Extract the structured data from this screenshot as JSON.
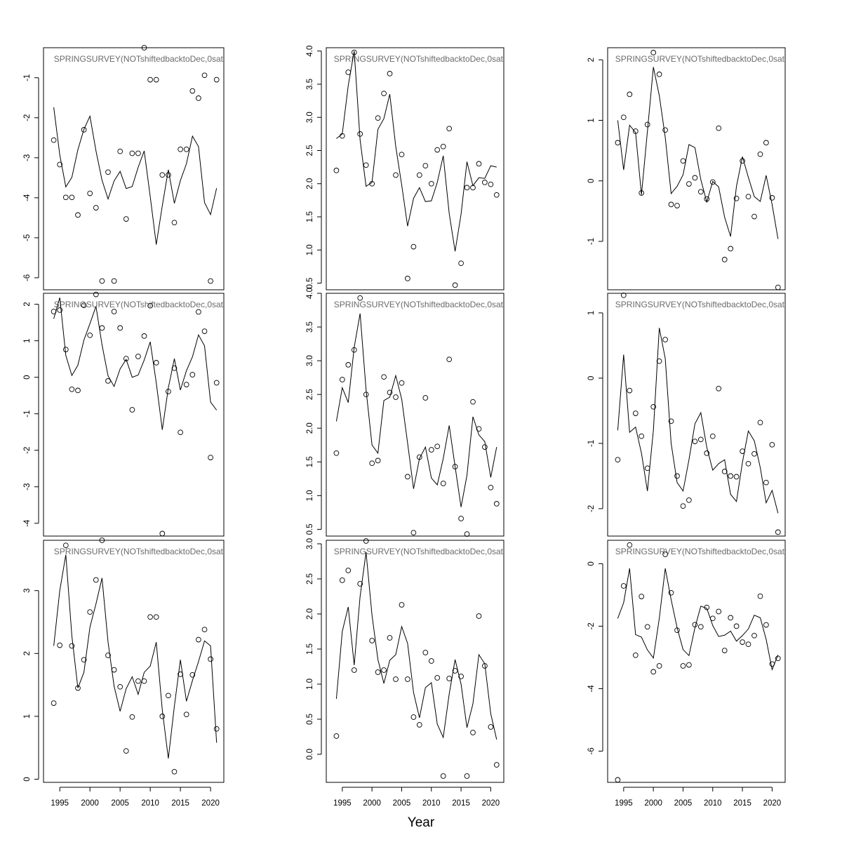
{
  "figure": {
    "xlabel": "Year",
    "panel_title": "SPRINGSURVEY(NOTshiftedbacktoDec,0sat",
    "line_color": "#000000",
    "point_color": "#000000",
    "title_color": "#6b6b6b"
  },
  "chart_data": [
    {
      "type": "line",
      "title": "SPRINGSURVEY(NOTshiftedbacktoDec,0sat",
      "x": [
        1994,
        1995,
        1996,
        1997,
        1998,
        1999,
        2000,
        2001,
        2002,
        2003,
        2004,
        2005,
        2006,
        2007,
        2008,
        2009,
        2010,
        2011,
        2012,
        2013,
        2014,
        2015,
        2016,
        2017,
        2018,
        2019,
        2020,
        2021
      ],
      "series": [
        {
          "role": "observed",
          "values": [
            -2.56,
            -3.17,
            -3.99,
            -3.99,
            -4.43,
            -2.3,
            -3.89,
            -4.25,
            -6.08,
            -3.36,
            -6.08,
            -2.84,
            -4.53,
            -2.89,
            -2.89,
            -0.25,
            -1.05,
            -1.05,
            -3.43,
            -3.43,
            -4.62,
            -2.79,
            -2.79,
            -1.33,
            -1.51,
            -0.94,
            -6.08,
            -1.05
          ]
        },
        {
          "role": "fitted",
          "values": [
            -1.74,
            -2.93,
            -3.73,
            -3.49,
            -2.8,
            -2.29,
            -1.96,
            -2.83,
            -3.56,
            -4.03,
            -3.58,
            -3.34,
            -3.77,
            -3.72,
            -3.24,
            -2.83,
            -3.97,
            -5.17,
            -4.2,
            -3.3,
            -4.14,
            -3.57,
            -3.15,
            -2.46,
            -2.72,
            -4.12,
            -4.42,
            -3.76
          ]
        }
      ],
      "ylim": [
        -6.3,
        -0.25
      ],
      "yticks": [
        -6,
        -5,
        -4,
        -3,
        -2,
        -1
      ]
    },
    {
      "type": "line",
      "title": "SPRINGSURVEY(NOTshiftedbacktoDec,0sat",
      "x": [
        1994,
        1995,
        1996,
        1997,
        1998,
        1999,
        2000,
        2001,
        2002,
        2003,
        2004,
        2005,
        2006,
        2007,
        2008,
        2009,
        2010,
        2011,
        2012,
        2013,
        2014,
        2015,
        2016,
        2017,
        2018,
        2019,
        2020,
        2021
      ],
      "series": [
        {
          "role": "observed",
          "values": [
            2.2,
            2.72,
            3.68,
            3.98,
            2.75,
            2.28,
            2.0,
            2.99,
            3.36,
            3.66,
            2.13,
            2.44,
            0.57,
            1.05,
            2.13,
            2.27,
            2.0,
            2.51,
            2.56,
            2.83,
            0.47,
            0.8,
            1.94,
            1.94,
            2.3,
            2.02,
            1.99,
            1.83
          ]
        },
        {
          "role": "fitted",
          "values": [
            2.68,
            2.75,
            3.48,
            4.0,
            2.66,
            1.96,
            2.02,
            2.82,
            2.98,
            3.35,
            2.56,
            1.98,
            1.36,
            1.78,
            1.94,
            1.73,
            1.74,
            2.02,
            2.42,
            1.55,
            0.98,
            1.54,
            2.33,
            1.97,
            2.09,
            2.08,
            2.27,
            2.25
          ]
        }
      ],
      "ylim": [
        0.4,
        4.05
      ],
      "yticks": [
        0.5,
        1.0,
        1.5,
        2.0,
        2.5,
        3.0,
        3.5,
        4.0
      ]
    },
    {
      "type": "line",
      "title": "SPRINGSURVEY(NOTshiftedbacktoDec,0sat",
      "x": [
        1994,
        1995,
        1996,
        1997,
        1998,
        1999,
        2000,
        2001,
        2002,
        2003,
        2004,
        2005,
        2006,
        2007,
        2008,
        2009,
        2010,
        2011,
        2012,
        2013,
        2014,
        2015,
        2016,
        2017,
        2018,
        2019,
        2020,
        2021
      ],
      "series": [
        {
          "role": "observed",
          "values": [
            0.63,
            1.05,
            1.43,
            0.82,
            -0.2,
            0.93,
            2.12,
            1.76,
            0.84,
            -0.39,
            -0.41,
            0.33,
            -0.05,
            0.05,
            -0.18,
            -0.3,
            -0.02,
            0.87,
            -1.3,
            -1.12,
            -0.29,
            0.33,
            -0.26,
            -0.59,
            0.44,
            0.63,
            -0.28,
            -1.76
          ]
        },
        {
          "role": "fitted",
          "values": [
            1.0,
            0.18,
            0.92,
            0.8,
            -0.23,
            0.82,
            1.88,
            1.41,
            0.72,
            -0.21,
            -0.09,
            0.1,
            0.6,
            0.55,
            0.02,
            -0.35,
            -0.01,
            -0.1,
            -0.6,
            -0.92,
            -0.09,
            0.4,
            0.06,
            -0.26,
            -0.34,
            0.09,
            -0.39,
            -0.96
          ]
        }
      ],
      "ylim": [
        -1.8,
        2.2
      ],
      "yticks": [
        -1,
        0,
        1,
        2
      ]
    },
    {
      "type": "line",
      "title": "SPRINGSURVEY(NOTshiftedbacktoDec,0sat",
      "x": [
        1994,
        1995,
        1996,
        1997,
        1998,
        1999,
        2000,
        2001,
        2002,
        2003,
        2004,
        2005,
        2006,
        2007,
        2008,
        2009,
        2010,
        2011,
        2012,
        2013,
        2014,
        2015,
        2016,
        2017,
        2018,
        2019,
        2020,
        2021
      ],
      "series": [
        {
          "role": "observed",
          "values": [
            1.8,
            1.84,
            0.76,
            -0.33,
            -0.36,
            1.97,
            1.15,
            2.27,
            1.35,
            -0.1,
            1.8,
            1.35,
            0.51,
            -0.89,
            0.57,
            1.13,
            1.96,
            0.4,
            -4.28,
            -0.39,
            0.25,
            -1.51,
            -0.2,
            0.07,
            1.79,
            1.26,
            -2.2,
            -0.15
          ]
        },
        {
          "role": "fitted",
          "values": [
            1.6,
            2.18,
            0.6,
            0.05,
            0.33,
            1.02,
            1.47,
            1.94,
            0.89,
            0.04,
            -0.25,
            0.23,
            0.49,
            0.0,
            0.06,
            0.47,
            0.97,
            -0.15,
            -1.44,
            -0.29,
            0.51,
            -0.35,
            0.18,
            0.56,
            1.16,
            0.86,
            -0.68,
            -0.9
          ]
        }
      ],
      "ylim": [
        -4.35,
        2.3
      ],
      "yticks": [
        -4,
        -3,
        -2,
        -1,
        0,
        1,
        2
      ]
    },
    {
      "type": "line",
      "title": "SPRINGSURVEY(NOTshiftedbacktoDec,0sat",
      "x": [
        1994,
        1995,
        1996,
        1997,
        1998,
        1999,
        2000,
        2001,
        2002,
        2003,
        2004,
        2005,
        2006,
        2007,
        2008,
        2009,
        2010,
        2011,
        2012,
        2013,
        2014,
        2015,
        2016,
        2017,
        2018,
        2019,
        2020,
        2021
      ],
      "series": [
        {
          "role": "observed",
          "values": [
            1.63,
            2.72,
            2.94,
            3.16,
            3.93,
            2.5,
            1.48,
            1.52,
            2.76,
            2.53,
            2.46,
            2.67,
            1.28,
            0.45,
            1.57,
            2.45,
            1.68,
            1.73,
            1.18,
            3.02,
            1.43,
            0.66,
            0.43,
            2.39,
            1.99,
            1.72,
            1.12,
            0.88
          ]
        },
        {
          "role": "fitted",
          "values": [
            2.1,
            2.6,
            2.38,
            3.2,
            3.7,
            2.57,
            1.75,
            1.63,
            2.41,
            2.46,
            2.78,
            2.43,
            1.78,
            1.1,
            1.55,
            1.72,
            1.26,
            1.16,
            1.55,
            2.04,
            1.43,
            0.83,
            1.3,
            2.17,
            1.9,
            1.8,
            1.27,
            1.72
          ]
        }
      ],
      "ylim": [
        0.4,
        4.0
      ],
      "yticks": [
        0.5,
        1.0,
        1.5,
        2.0,
        2.5,
        3.0,
        3.5,
        4.0
      ]
    },
    {
      "type": "line",
      "title": "SPRINGSURVEY(NOTshiftedbacktoDec,0sat",
      "x": [
        1994,
        1995,
        1996,
        1997,
        1998,
        1999,
        2000,
        2001,
        2002,
        2003,
        2004,
        2005,
        2006,
        2007,
        2008,
        2009,
        2010,
        2011,
        2012,
        2013,
        2014,
        2015,
        2016,
        2017,
        2018,
        2019,
        2020,
        2021
      ],
      "series": [
        {
          "role": "observed",
          "values": [
            -1.25,
            1.27,
            -0.19,
            -0.54,
            -0.89,
            -1.38,
            -0.44,
            0.26,
            0.59,
            -0.66,
            -1.5,
            -1.96,
            -1.87,
            -0.97,
            -0.94,
            -1.15,
            -0.89,
            -0.16,
            -1.43,
            -1.5,
            -1.51,
            -1.12,
            -1.31,
            -1.16,
            -0.68,
            -1.6,
            -1.02,
            -2.36
          ]
        },
        {
          "role": "fitted",
          "values": [
            -0.8,
            0.36,
            -0.83,
            -0.75,
            -1.15,
            -1.73,
            -0.8,
            0.77,
            0.3,
            -1.0,
            -1.6,
            -1.73,
            -1.25,
            -0.7,
            -0.53,
            -1.06,
            -1.41,
            -1.31,
            -1.25,
            -1.78,
            -1.89,
            -1.29,
            -0.81,
            -0.96,
            -1.37,
            -1.91,
            -1.72,
            -2.07
          ]
        }
      ],
      "ylim": [
        -2.42,
        1.3
      ],
      "yticks": [
        -2,
        -1,
        0,
        1
      ]
    },
    {
      "type": "line",
      "title": "SPRINGSURVEY(NOTshiftedbacktoDec,0sat",
      "x": [
        1994,
        1995,
        1996,
        1997,
        1998,
        1999,
        2000,
        2001,
        2002,
        2003,
        2004,
        2005,
        2006,
        2007,
        2008,
        2009,
        2010,
        2011,
        2012,
        2013,
        2014,
        2015,
        2016,
        2017,
        2018,
        2019,
        2020,
        2021
      ],
      "series": [
        {
          "role": "observed",
          "values": [
            1.21,
            2.13,
            3.72,
            2.12,
            1.45,
            1.9,
            2.66,
            3.17,
            3.8,
            1.97,
            1.74,
            1.47,
            0.45,
            0.99,
            1.56,
            1.56,
            2.58,
            2.58,
            1.0,
            1.33,
            0.12,
            1.67,
            1.03,
            1.66,
            2.22,
            2.38,
            1.91,
            0.8
          ]
        },
        {
          "role": "fitted",
          "values": [
            2.12,
            3.0,
            3.57,
            2.28,
            1.45,
            1.7,
            2.42,
            2.79,
            3.2,
            2.18,
            1.48,
            1.08,
            1.44,
            1.63,
            1.35,
            1.7,
            1.8,
            2.18,
            1.1,
            0.33,
            1.16,
            1.9,
            1.24,
            1.57,
            1.87,
            2.2,
            2.12,
            0.58
          ]
        }
      ],
      "ylim": [
        -0.05,
        3.8
      ],
      "yticks": [
        0,
        1,
        2,
        3
      ]
    },
    {
      "type": "line",
      "title": "SPRINGSURVEY(NOTshiftedbacktoDec,0sat",
      "x": [
        1994,
        1995,
        1996,
        1997,
        1998,
        1999,
        2000,
        2001,
        2002,
        2003,
        2004,
        2005,
        2006,
        2007,
        2008,
        2009,
        2010,
        2011,
        2012,
        2013,
        2014,
        2015,
        2016,
        2017,
        2018,
        2019,
        2020,
        2021
      ],
      "series": [
        {
          "role": "observed",
          "values": [
            0.26,
            2.48,
            2.62,
            1.2,
            2.43,
            3.04,
            1.62,
            1.17,
            1.2,
            1.66,
            1.07,
            2.13,
            1.07,
            0.53,
            0.42,
            1.45,
            1.33,
            1.09,
            -0.31,
            1.08,
            1.19,
            1.11,
            -0.31,
            0.31,
            1.97,
            1.26,
            0.39,
            -0.15
          ]
        },
        {
          "role": "fitted",
          "values": [
            0.79,
            1.75,
            2.1,
            1.27,
            2.25,
            2.88,
            1.98,
            1.35,
            1.01,
            1.34,
            1.42,
            1.82,
            1.58,
            0.88,
            0.52,
            0.95,
            1.02,
            0.43,
            0.24,
            0.86,
            1.35,
            1.0,
            0.38,
            0.72,
            1.42,
            1.29,
            0.58,
            0.21
          ]
        }
      ],
      "ylim": [
        -0.4,
        3.05
      ],
      "yticks": [
        0.0,
        0.5,
        1.0,
        1.5,
        2.0,
        2.5,
        3.0
      ]
    },
    {
      "type": "line",
      "title": "SPRINGSURVEY(NOTshiftedbacktoDec,0sat",
      "x": [
        1994,
        1995,
        1996,
        1997,
        1998,
        1999,
        2000,
        2001,
        2002,
        2003,
        2004,
        2005,
        2006,
        2007,
        2008,
        2009,
        2010,
        2011,
        2012,
        2013,
        2014,
        2015,
        2016,
        2017,
        2018,
        2019,
        2020,
        2021
      ],
      "series": [
        {
          "role": "observed",
          "values": [
            -6.92,
            -0.71,
            0.6,
            -2.93,
            -1.05,
            -2.02,
            -3.46,
            -3.27,
            0.3,
            -0.93,
            -2.13,
            -3.27,
            -3.24,
            -1.95,
            -2.02,
            -1.4,
            -1.75,
            -1.53,
            -2.78,
            -1.73,
            -2.0,
            -2.51,
            -2.58,
            -2.3,
            -1.04,
            -1.96,
            -3.21,
            -3.03
          ]
        },
        {
          "role": "fitted",
          "values": [
            -1.75,
            -1.25,
            -0.15,
            -2.27,
            -2.35,
            -2.76,
            -3.02,
            -1.75,
            -0.15,
            -1.15,
            -2.05,
            -2.75,
            -2.94,
            -2.05,
            -1.36,
            -1.43,
            -1.98,
            -2.33,
            -2.29,
            -2.16,
            -2.48,
            -2.3,
            -2.09,
            -1.65,
            -1.73,
            -2.42,
            -3.39,
            -2.92
          ]
        }
      ],
      "ylim": [
        -7.0,
        0.75
      ],
      "yticks": [
        -6,
        -4,
        -2,
        0
      ]
    }
  ]
}
